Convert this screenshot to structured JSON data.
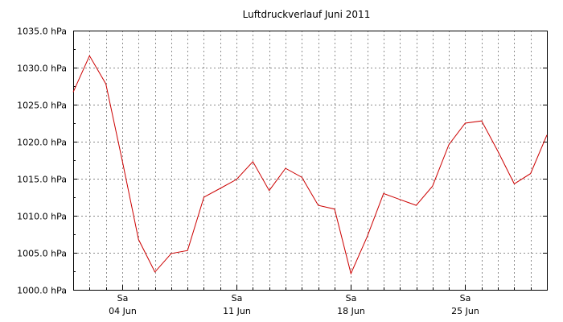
{
  "chart_data": {
    "type": "line",
    "title": "Luftdruckverlauf Juni 2011",
    "xlabel": "",
    "ylabel": "",
    "x_day_range": [
      1,
      30
    ],
    "ylim": [
      1000,
      1035
    ],
    "y_ticks": [
      1000,
      1005,
      1010,
      1015,
      1020,
      1025,
      1030,
      1035
    ],
    "y_tick_labels": [
      "1000.0 hPa",
      "1005.0 hPa",
      "1010.0 hPa",
      "1015.0 hPa",
      "1020.0 hPa",
      "1025.0 hPa",
      "1030.0 hPa",
      "1035.0 hPa"
    ],
    "x_ticks": [
      {
        "day": 4,
        "weekday": "Sa",
        "date": "04 Jun"
      },
      {
        "day": 11,
        "weekday": "Sa",
        "date": "11 Jun"
      },
      {
        "day": 18,
        "weekday": "Sa",
        "date": "18 Jun"
      },
      {
        "day": 25,
        "weekday": "Sa",
        "date": "25 Jun"
      }
    ],
    "grid": true,
    "series": [
      {
        "color": "#cc0000",
        "x": [
          1,
          2,
          3,
          4,
          5,
          6,
          7,
          8,
          9,
          10,
          11,
          12,
          13,
          14,
          15,
          16,
          17,
          18,
          19,
          20,
          21,
          22,
          23,
          24,
          25,
          26,
          27,
          28,
          29,
          30
        ],
        "values": [
          1026.7,
          1031.6,
          1027.8,
          1017.5,
          1006.8,
          1002.4,
          1004.9,
          1005.3,
          1012.5,
          1013.7,
          1014.9,
          1017.3,
          1013.4,
          1016.4,
          1015.2,
          1011.4,
          1010.9,
          1002.2,
          1007.2,
          1013.0,
          1012.2,
          1011.4,
          1014.0,
          1019.6,
          1022.5,
          1022.8,
          1018.7,
          1014.3,
          1015.7,
          1020.9
        ]
      }
    ]
  }
}
